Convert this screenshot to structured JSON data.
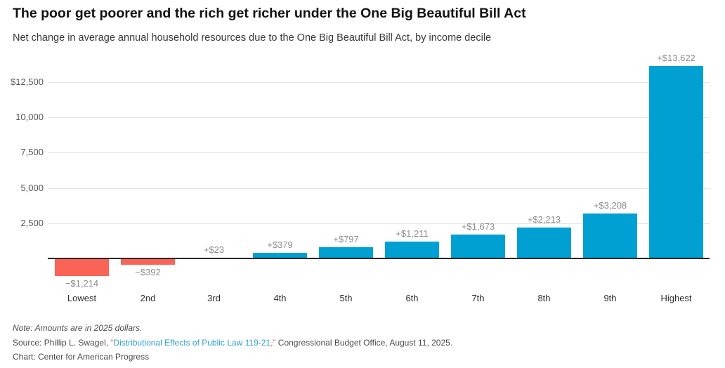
{
  "chart_data": {
    "type": "bar",
    "title": "The poor get poorer and the rich get richer under the One Big Beautiful Bill Act",
    "subtitle": "Net change in average annual household resources due to the One Big Beautiful Bill Act, by income decile",
    "categories": [
      "Lowest",
      "2nd",
      "3rd",
      "4th",
      "5th",
      "6th",
      "7th",
      "8th",
      "9th",
      "Highest"
    ],
    "values": [
      -1214,
      -392,
      23,
      379,
      797,
      1211,
      1673,
      2213,
      3208,
      13622
    ],
    "value_labels": [
      "−$1,214",
      "−$392",
      "+$23",
      "+$379",
      "+$797",
      "+$1,211",
      "+$1,673",
      "+$2,213",
      "+$3,208",
      "+$13,622"
    ],
    "xlabel": "",
    "ylabel": "",
    "y_ticks": [
      2500,
      5000,
      7500,
      10000,
      12500
    ],
    "y_tick_labels": [
      "2,500",
      "5,000",
      "7,500",
      "10,000",
      "$12,500"
    ],
    "ylim": [
      -1500,
      13800
    ],
    "grid": true,
    "legend": "none",
    "positive_color": "#00a0d2",
    "negative_color": "#fa6456",
    "baseline_color": "#262626",
    "gridline_color": "#e4e4e4"
  },
  "footer": {
    "note": "Note: Amounts are in 2025 dollars.",
    "source_prefix": "Source: Phillip L. Swagel, ",
    "source_quote_open": "“",
    "source_link": "Distributional Effects of Public Law 119-21",
    "source_quote_close": ",”",
    "source_suffix": " Congressional Budget Office, August 11, 2025.",
    "credit": "Chart: Center for American Progress"
  },
  "colors": {
    "link": "#2e9fd6",
    "quote": "#f0584a",
    "title": "#121212",
    "value_label": "#8c8c8c",
    "category_label": "#2e2e2e"
  }
}
